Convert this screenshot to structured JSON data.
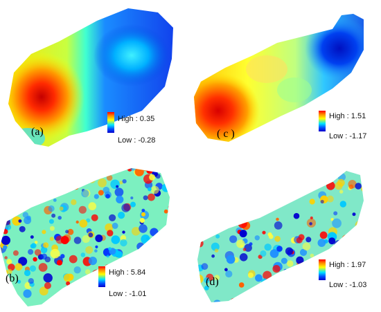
{
  "panels": [
    {
      "id": "a",
      "label": "(a)",
      "high": "High : 0.35",
      "low": "Low : -0.28"
    },
    {
      "id": "c",
      "label": "( c )",
      "high": "High : 1.51",
      "low": "Low : -1.17"
    },
    {
      "id": "b",
      "label": "(b)",
      "high": "High : 5.84",
      "low": "Low : -1.01"
    },
    {
      "id": "d",
      "label": "(d)",
      "high": "High : 1.97",
      "low": "Low : -1.03"
    }
  ],
  "colors": {
    "high": "#ff0000",
    "mid": "#ffff00",
    "cyan": "#00e5ff",
    "low": "#0000cc",
    "background": "#ffffff"
  }
}
